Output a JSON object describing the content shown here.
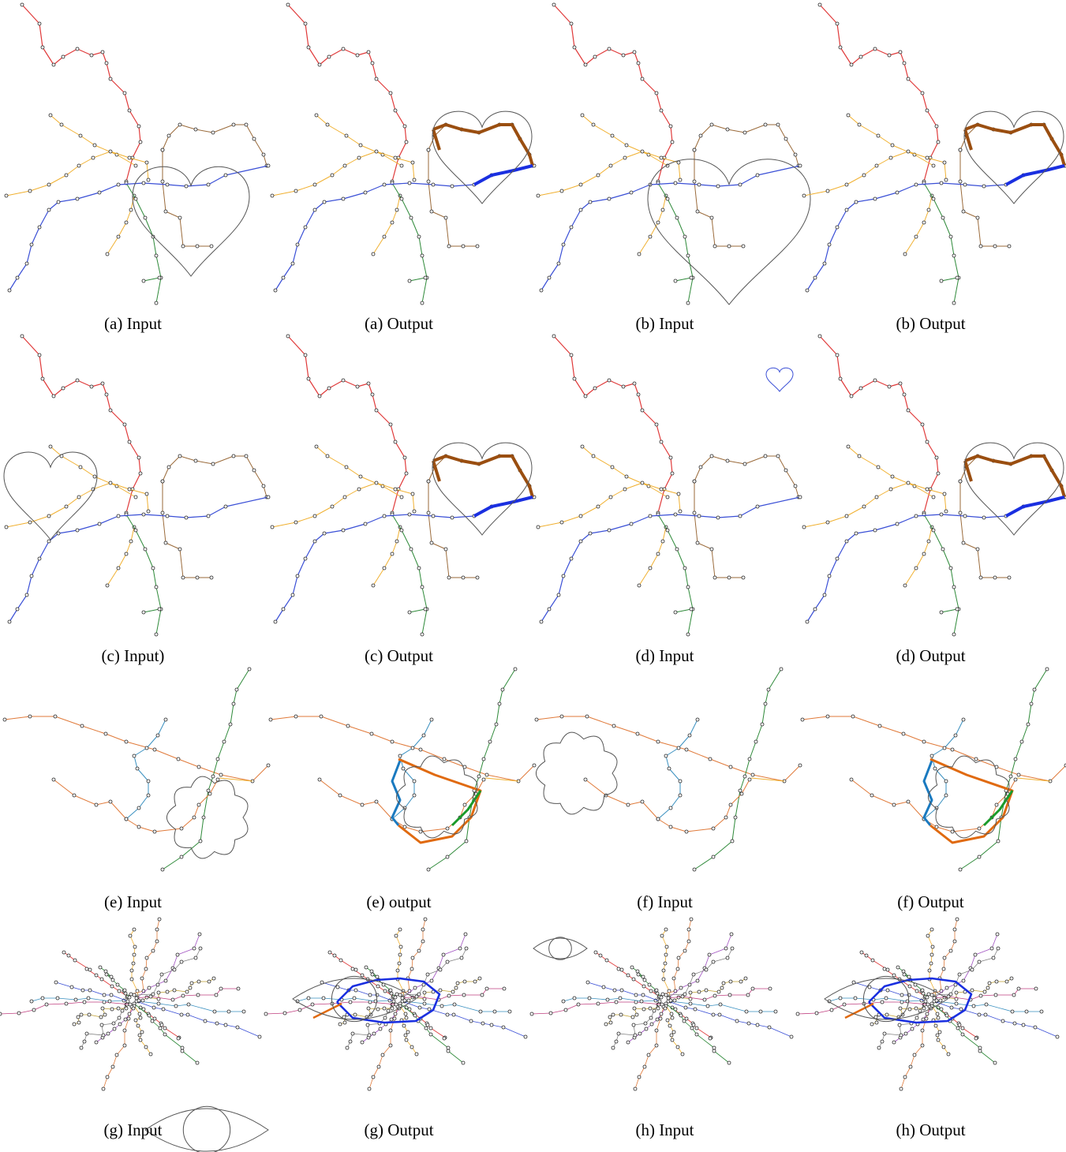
{
  "figure": {
    "captions": [
      "(a) Input",
      "(a) Output",
      "(b) Input",
      "(b) Output",
      "(c) Input)",
      "(c) Output",
      "(d) Input",
      "(d) Output",
      "(e) Input",
      "(e) output",
      "(f) Input",
      "(f) Output",
      "(g) Input",
      "(g) Output",
      "(h) Input",
      "(h) Output"
    ],
    "colors": {
      "red": "#e03a3a",
      "orange": "#f0b030",
      "blue": "#3a4fd6",
      "green": "#2f8a3a",
      "brown": "#9a6a3a",
      "teal": "#3a90c0",
      "dark_orange": "#e07a3a",
      "highlight_brown": "#9a4e10",
      "highlight_blue": "#1a2fe0",
      "highlight_orange": "#e06a10",
      "highlight_green": "#1a9a2a",
      "highlight_teal": "#1a7ac0",
      "shape_stroke": "#555555",
      "node_fill": "#ffffff",
      "node_stroke": "#222222"
    },
    "shapes": {
      "row1": "heart",
      "row2": "heart",
      "row3": "flower",
      "row4": "eye"
    }
  }
}
